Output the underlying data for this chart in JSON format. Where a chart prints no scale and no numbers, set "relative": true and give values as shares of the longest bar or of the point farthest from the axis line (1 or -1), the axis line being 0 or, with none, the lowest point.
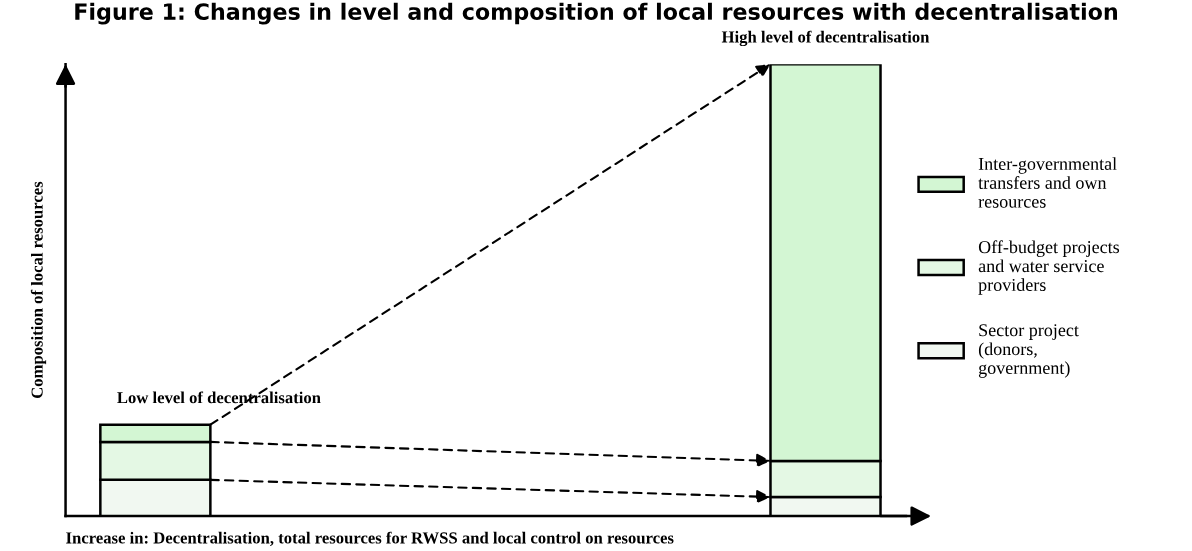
{
  "chart_data": {
    "type": "bar",
    "title": "Figure 1: Changes in level and composition of local resources with decentralisation",
    "xlabel": "Increase in: Decentralisation, total resources for RWSS and local control on resources",
    "ylabel": "Composition of local resources",
    "categories": [
      "Low level of decentralisation",
      "High level of decentralisation"
    ],
    "stacked": true,
    "relative": true,
    "legend": "right",
    "series": [
      {
        "name": "Sector project\n(donors,\ngovernment)",
        "color": "#f1f8f1",
        "values": [
          0.08,
          0.042
        ]
      },
      {
        "name": "Off-budget projects\nand water service\nproviders",
        "color": "#e4f8e4",
        "values": [
          0.084,
          0.08
        ]
      },
      {
        "name": "Inter-governmental\ntransfers and own\nresources",
        "color": "#d3f6d3",
        "values": [
          0.038,
          0.878
        ]
      }
    ]
  }
}
